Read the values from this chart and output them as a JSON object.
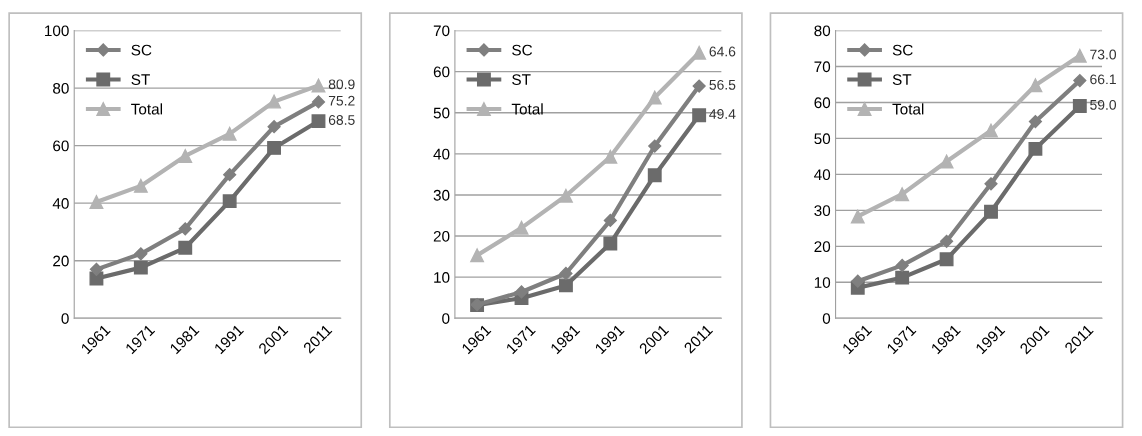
{
  "chart_data": [
    {
      "type": "line",
      "categories": [
        "1961",
        "1971",
        "1981",
        "1991",
        "2001",
        "2011"
      ],
      "ylim": [
        0,
        100
      ],
      "yticks": [
        0,
        20,
        40,
        60,
        80,
        100
      ],
      "grid": "y",
      "legend": "top left",
      "series": [
        {
          "name": "SC",
          "color": "#7f7f7f",
          "marker": "diamond",
          "values": [
            17.0,
            22.4,
            31.1,
            49.9,
            66.6,
            75.2
          ],
          "value_labels": [
            null,
            null,
            null,
            null,
            null,
            "75.2"
          ]
        },
        {
          "name": "ST",
          "color": "#6b6b6b",
          "marker": "square",
          "values": [
            13.8,
            17.6,
            24.5,
            40.7,
            59.2,
            68.5
          ],
          "value_labels": [
            null,
            null,
            null,
            null,
            null,
            "68.5"
          ]
        },
        {
          "name": "Total",
          "color": "#b3b3b3",
          "marker": "triangle",
          "values": [
            40.4,
            46.0,
            56.4,
            64.1,
            75.3,
            80.9
          ],
          "value_labels": [
            null,
            null,
            null,
            null,
            null,
            "80.9"
          ]
        }
      ]
    },
    {
      "type": "line",
      "categories": [
        "1961",
        "1971",
        "1981",
        "1991",
        "2001",
        "2011"
      ],
      "ylim": [
        0,
        70
      ],
      "yticks": [
        0,
        10,
        20,
        30,
        40,
        50,
        60,
        70
      ],
      "grid": "y",
      "legend": "top left",
      "series": [
        {
          "name": "SC",
          "color": "#7f7f7f",
          "marker": "diamond",
          "values": [
            3.3,
            6.4,
            10.9,
            23.8,
            41.9,
            56.5
          ],
          "value_labels": [
            null,
            null,
            null,
            null,
            null,
            "56.5"
          ]
        },
        {
          "name": "ST",
          "color": "#6b6b6b",
          "marker": "square",
          "values": [
            3.2,
            4.9,
            8.0,
            18.2,
            34.8,
            49.4
          ],
          "value_labels": [
            null,
            null,
            null,
            null,
            null,
            "49.4"
          ]
        },
        {
          "name": "Total",
          "color": "#b3b3b3",
          "marker": "triangle",
          "values": [
            15.3,
            22.0,
            29.8,
            39.3,
            53.7,
            64.6
          ],
          "value_labels": [
            null,
            null,
            null,
            null,
            null,
            "64.6"
          ]
        }
      ]
    },
    {
      "type": "line",
      "categories": [
        "1961",
        "1971",
        "1981",
        "1991",
        "2001",
        "2011"
      ],
      "ylim": [
        0,
        80
      ],
      "yticks": [
        0,
        10,
        20,
        30,
        40,
        50,
        60,
        70,
        80
      ],
      "grid": "y",
      "legend": "top left",
      "series": [
        {
          "name": "SC",
          "color": "#7f7f7f",
          "marker": "diamond",
          "values": [
            10.3,
            14.7,
            21.4,
            37.4,
            54.7,
            66.1
          ],
          "value_labels": [
            null,
            null,
            null,
            null,
            null,
            "66.1"
          ]
        },
        {
          "name": "ST",
          "color": "#6b6b6b",
          "marker": "square",
          "values": [
            8.5,
            11.3,
            16.4,
            29.6,
            47.1,
            59.0
          ],
          "value_labels": [
            null,
            null,
            null,
            null,
            null,
            "59.0"
          ]
        },
        {
          "name": "Total",
          "color": "#b3b3b3",
          "marker": "triangle",
          "values": [
            28.3,
            34.5,
            43.6,
            52.2,
            64.8,
            73.0
          ],
          "value_labels": [
            null,
            null,
            null,
            null,
            null,
            "73.0"
          ]
        }
      ]
    }
  ]
}
